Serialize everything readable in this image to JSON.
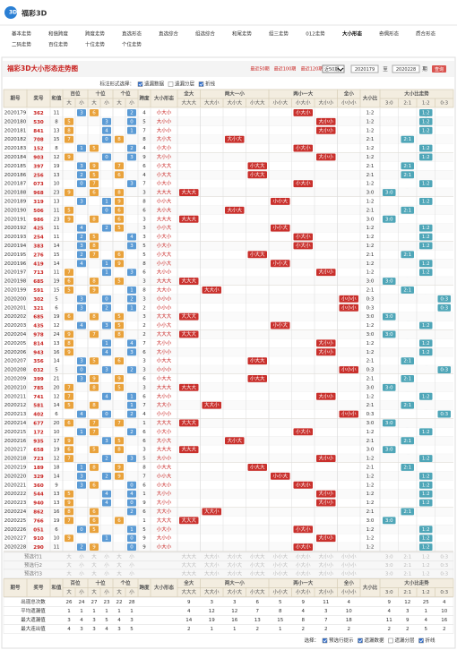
{
  "header": {
    "logo": "福彩3D",
    "nav": [
      "基本走势",
      "和值跨度",
      "跨度走势",
      "直选形态",
      "直选综合",
      "组选综合",
      "和尾走势",
      "组三走势",
      "012走势",
      "大小形态",
      "奇偶形态",
      "质合形态",
      "二码走势",
      "百位走势",
      "十位走势",
      "个位走势"
    ]
  },
  "panel": {
    "title": "福彩3D大小形态走势图",
    "ranges": [
      "最近50期",
      "最近100期",
      "最近120期"
    ],
    "select": "近50期",
    "from": "2020179",
    "period": "期",
    "to_label": "至",
    "to": "2020228",
    "query": "查询"
  },
  "options": {
    "label": "标注形式选择：",
    "items": [
      {
        "label": "遗漏数据",
        "checked": true
      },
      {
        "label": "遗漏分层",
        "checked": false
      },
      {
        "label": "折线",
        "checked": true
      }
    ]
  },
  "table": {
    "groups": [
      "期号",
      "奖号",
      "和值",
      "百位",
      "十位",
      "个位",
      "跨度",
      "大小形态",
      "全大",
      "两大一小",
      "两小一大",
      "全小",
      "大小比",
      "大小比走势"
    ],
    "pos_sub": [
      "大",
      "小"
    ],
    "shapes": [
      "大大大",
      "大大小",
      "大小大",
      "小大大",
      "小小大",
      "小大小",
      "大小小",
      "小小小"
    ],
    "ratios": [
      "3:0",
      "2:1",
      "1:2",
      "0:3"
    ],
    "rows": [
      {
        "issue": "2020179",
        "number": [
          3,
          6,
          2
        ],
        "sum": 11,
        "span": 4,
        "shape": "小大小",
        "ratio": "1:2"
      },
      {
        "issue": "2020180",
        "number": [
          5,
          3,
          0
        ],
        "sum": 8,
        "span": 5,
        "shape": "大小小",
        "ratio": "1:2"
      },
      {
        "issue": "2020181",
        "number": [
          8,
          4,
          1
        ],
        "sum": 13,
        "span": 7,
        "shape": "大小小",
        "ratio": "1:2"
      },
      {
        "issue": "2020182",
        "number": [
          7,
          0,
          8
        ],
        "sum": 15,
        "span": 8,
        "shape": "大小大",
        "ratio": "2:1"
      },
      {
        "issue": "2020183",
        "number": [
          1,
          5,
          2
        ],
        "sum": 8,
        "span": 4,
        "shape": "小大小",
        "ratio": "1:2"
      },
      {
        "issue": "2020184",
        "number": [
          9,
          0,
          3
        ],
        "sum": 12,
        "span": 9,
        "shape": "大小小",
        "ratio": "1:2"
      },
      {
        "issue": "2020185",
        "number": [
          3,
          9,
          7
        ],
        "sum": 19,
        "span": 6,
        "shape": "小大大",
        "ratio": "2:1"
      },
      {
        "issue": "2020186",
        "number": [
          2,
          5,
          6
        ],
        "sum": 13,
        "span": 4,
        "shape": "小大大",
        "ratio": "2:1"
      },
      {
        "issue": "2020187",
        "number": [
          0,
          7,
          3
        ],
        "sum": 10,
        "span": 7,
        "shape": "小大小",
        "ratio": "1:2"
      },
      {
        "issue": "2020188",
        "number": [
          9,
          6,
          8
        ],
        "sum": 23,
        "span": 3,
        "shape": "大大大",
        "ratio": "3:0"
      },
      {
        "issue": "2020189",
        "number": [
          3,
          1,
          9
        ],
        "sum": 13,
        "span": 8,
        "shape": "小小大",
        "ratio": "1:2"
      },
      {
        "issue": "2020190",
        "number": [
          5,
          0,
          6
        ],
        "sum": 11,
        "span": 6,
        "shape": "大小大",
        "ratio": "2:1"
      },
      {
        "issue": "2020191",
        "number": [
          9,
          8,
          6
        ],
        "sum": 23,
        "span": 3,
        "shape": "大大大",
        "ratio": "3:0"
      },
      {
        "issue": "2020192",
        "number": [
          4,
          2,
          5
        ],
        "sum": 11,
        "span": 3,
        "shape": "小小大",
        "ratio": "1:2"
      },
      {
        "issue": "2020193",
        "number": [
          2,
          5,
          4
        ],
        "sum": 11,
        "span": 3,
        "shape": "小大小",
        "ratio": "1:2"
      },
      {
        "issue": "2020194",
        "number": [
          3,
          8,
          3
        ],
        "sum": 14,
        "span": 5,
        "shape": "小大小",
        "ratio": "1:2"
      },
      {
        "issue": "2020195",
        "number": [
          2,
          7,
          6
        ],
        "sum": 15,
        "span": 5,
        "shape": "小大大",
        "ratio": "2:1"
      },
      {
        "issue": "2020196",
        "number": [
          4,
          1,
          9
        ],
        "sum": 14,
        "span": 8,
        "shape": "小小大",
        "ratio": "1:2"
      },
      {
        "issue": "2020197",
        "number": [
          7,
          1,
          3
        ],
        "sum": 11,
        "span": 6,
        "shape": "大小小",
        "ratio": "1:2"
      },
      {
        "issue": "2020198",
        "number": [
          6,
          8,
          5
        ],
        "sum": 19,
        "span": 3,
        "shape": "大大大",
        "ratio": "3:0"
      },
      {
        "issue": "2020199",
        "number": [
          5,
          9,
          1
        ],
        "sum": 15,
        "span": 8,
        "shape": "大大小",
        "ratio": "2:1"
      },
      {
        "issue": "2020200",
        "number": [
          3,
          0,
          2
        ],
        "sum": 5,
        "span": 3,
        "shape": "小小小",
        "ratio": "0:3"
      },
      {
        "issue": "2020201",
        "number": [
          3,
          2,
          1
        ],
        "sum": 6,
        "span": 2,
        "shape": "小小小",
        "ratio": "0:3"
      },
      {
        "issue": "2020202",
        "number": [
          6,
          8,
          5
        ],
        "sum": 19,
        "span": 3,
        "shape": "大大大",
        "ratio": "3:0"
      },
      {
        "issue": "2020203",
        "number": [
          4,
          3,
          5
        ],
        "sum": 12,
        "span": 2,
        "shape": "小小大",
        "ratio": "1:2"
      },
      {
        "issue": "2020204",
        "number": [
          9,
          7,
          8
        ],
        "sum": 24,
        "span": 2,
        "shape": "大大大",
        "ratio": "3:0"
      },
      {
        "issue": "2020205",
        "number": [
          8,
          1,
          4
        ],
        "sum": 13,
        "span": 7,
        "shape": "大小小",
        "ratio": "1:2"
      },
      {
        "issue": "2020206",
        "number": [
          9,
          4,
          3
        ],
        "sum": 16,
        "span": 6,
        "shape": "大小小",
        "ratio": "1:2"
      },
      {
        "issue": "2020207",
        "number": [
          3,
          5,
          6
        ],
        "sum": 14,
        "span": 3,
        "shape": "小大大",
        "ratio": "2:1"
      },
      {
        "issue": "2020208",
        "number": [
          0,
          3,
          2
        ],
        "sum": 5,
        "span": 3,
        "shape": "小小小",
        "ratio": "0:3"
      },
      {
        "issue": "2020209",
        "number": [
          3,
          9,
          9
        ],
        "sum": 21,
        "span": 6,
        "shape": "小大大",
        "ratio": "2:1"
      },
      {
        "issue": "2020210",
        "number": [
          7,
          8,
          5
        ],
        "sum": 20,
        "span": 3,
        "shape": "大大大",
        "ratio": "3:0"
      },
      {
        "issue": "2020211",
        "number": [
          7,
          4,
          1
        ],
        "sum": 12,
        "span": 6,
        "shape": "大小小",
        "ratio": "1:2"
      },
      {
        "issue": "2020212",
        "number": [
          5,
          8,
          1
        ],
        "sum": 14,
        "span": 7,
        "shape": "大大小",
        "ratio": "2:1"
      },
      {
        "issue": "2020213",
        "number": [
          4,
          0,
          2
        ],
        "sum": 6,
        "span": 4,
        "shape": "小小小",
        "ratio": "0:3"
      },
      {
        "issue": "2020214",
        "number": [
          6,
          7,
          7
        ],
        "sum": 20,
        "span": 1,
        "shape": "大大大",
        "ratio": "3:0"
      },
      {
        "issue": "2020215",
        "number": [
          1,
          7,
          2
        ],
        "sum": 10,
        "span": 6,
        "shape": "小大小",
        "ratio": "1:2"
      },
      {
        "issue": "2020216",
        "number": [
          9,
          3,
          5
        ],
        "sum": 17,
        "span": 6,
        "shape": "大小大",
        "ratio": "2:1"
      },
      {
        "issue": "2020217",
        "number": [
          6,
          5,
          8
        ],
        "sum": 19,
        "span": 3,
        "shape": "大大大",
        "ratio": "3:0"
      },
      {
        "issue": "2020218",
        "number": [
          7,
          2,
          3
        ],
        "sum": 12,
        "span": 5,
        "shape": "大小小",
        "ratio": "1:2"
      },
      {
        "issue": "2020219",
        "number": [
          1,
          8,
          9
        ],
        "sum": 18,
        "span": 8,
        "shape": "小大大",
        "ratio": "2:1"
      },
      {
        "issue": "2020220",
        "number": [
          3,
          2,
          9
        ],
        "sum": 14,
        "span": 7,
        "shape": "小小大",
        "ratio": "1:2"
      },
      {
        "issue": "2020221",
        "number": [
          3,
          6,
          0
        ],
        "sum": 9,
        "span": 6,
        "shape": "小大小",
        "ratio": "1:2"
      },
      {
        "issue": "2020222",
        "number": [
          5,
          4,
          4
        ],
        "sum": 13,
        "span": 1,
        "shape": "大小小",
        "ratio": "1:2"
      },
      {
        "issue": "2020223",
        "number": [
          9,
          4,
          0
        ],
        "sum": 13,
        "span": 9,
        "shape": "大小小",
        "ratio": "1:2"
      },
      {
        "issue": "2020224",
        "number": [
          8,
          6,
          2
        ],
        "sum": 16,
        "span": 6,
        "shape": "大大小",
        "ratio": "2:1"
      },
      {
        "issue": "2020225",
        "number": [
          7,
          6,
          6
        ],
        "sum": 19,
        "span": 1,
        "shape": "大大大",
        "ratio": "3:0"
      },
      {
        "issue": "2020226",
        "number": [
          0,
          5,
          1
        ],
        "sum": 6,
        "span": 5,
        "shape": "小大小",
        "ratio": "1:2"
      },
      {
        "issue": "2020227",
        "number": [
          9,
          1,
          0
        ],
        "sum": 10,
        "span": 9,
        "shape": "大小小",
        "ratio": "1:2"
      },
      {
        "issue": "2020228",
        "number": [
          2,
          9,
          0
        ],
        "sum": 11,
        "span": 9,
        "shape": "小大小",
        "ratio": "1:2"
      }
    ],
    "preselect": [
      "预选行1",
      "预选行2",
      "预选行3"
    ],
    "stats": [
      {
        "label": "出现总次数",
        "values": [
          26,
          24,
          27,
          23,
          22,
          28,
          9,
          3,
          3,
          6,
          5,
          9,
          11,
          4,
          9,
          12,
          25,
          4
        ]
      },
      {
        "label": "平均遗漏值",
        "values": [
          1,
          1,
          1,
          1,
          1,
          1,
          4,
          12,
          12,
          7,
          8,
          4,
          3,
          10,
          4,
          3,
          1,
          10
        ]
      },
      {
        "label": "最大遗漏值",
        "values": [
          3,
          4,
          3,
          5,
          4,
          3,
          14,
          19,
          16,
          13,
          15,
          8,
          7,
          18,
          11,
          9,
          4,
          16
        ]
      },
      {
        "label": "最大连出值",
        "values": [
          4,
          3,
          3,
          4,
          3,
          5,
          2,
          1,
          1,
          2,
          1,
          2,
          2,
          2,
          2,
          2,
          5,
          2
        ]
      }
    ]
  },
  "footer": {
    "label": "选择：",
    "items": [
      {
        "label": "预选行提示",
        "checked": true
      },
      {
        "label": "遗漏数据",
        "checked": true
      },
      {
        "label": "遗漏分层",
        "checked": false
      },
      {
        "label": "折线",
        "checked": true
      }
    ]
  }
}
